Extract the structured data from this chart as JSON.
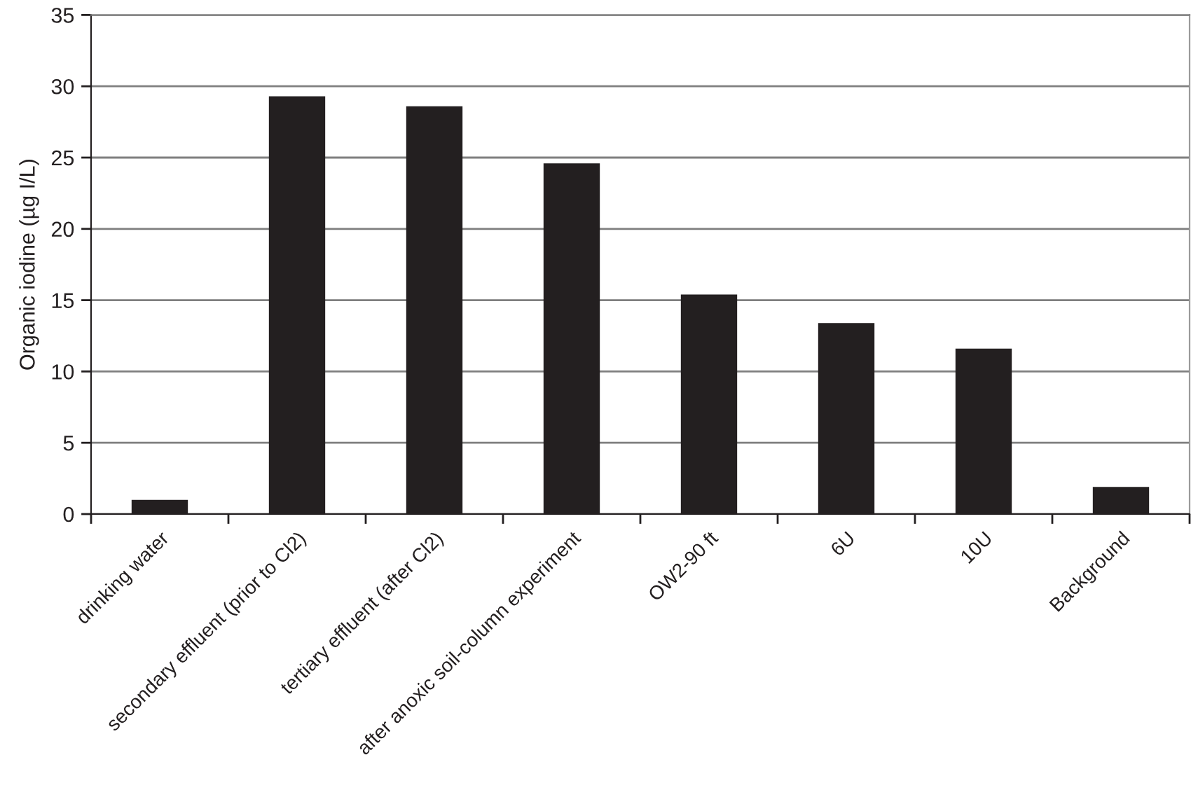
{
  "chart_data": {
    "type": "bar",
    "ylabel": "Organic iodine (µg I/L)",
    "categories": [
      "drinking water",
      "secondary effluent (prior to Cl2)",
      "tertiary effluent (after Cl2)",
      "after anoxic soil-column experiment",
      "OW2-90 ft",
      "6U",
      "10U",
      "Background"
    ],
    "values": [
      1.0,
      29.3,
      28.6,
      24.6,
      15.4,
      13.4,
      11.6,
      1.9
    ],
    "color": "#231f20",
    "ylim": [
      0,
      35
    ],
    "yticks": [
      0,
      5,
      10,
      15,
      20,
      25,
      30,
      35
    ],
    "grid": "y"
  }
}
